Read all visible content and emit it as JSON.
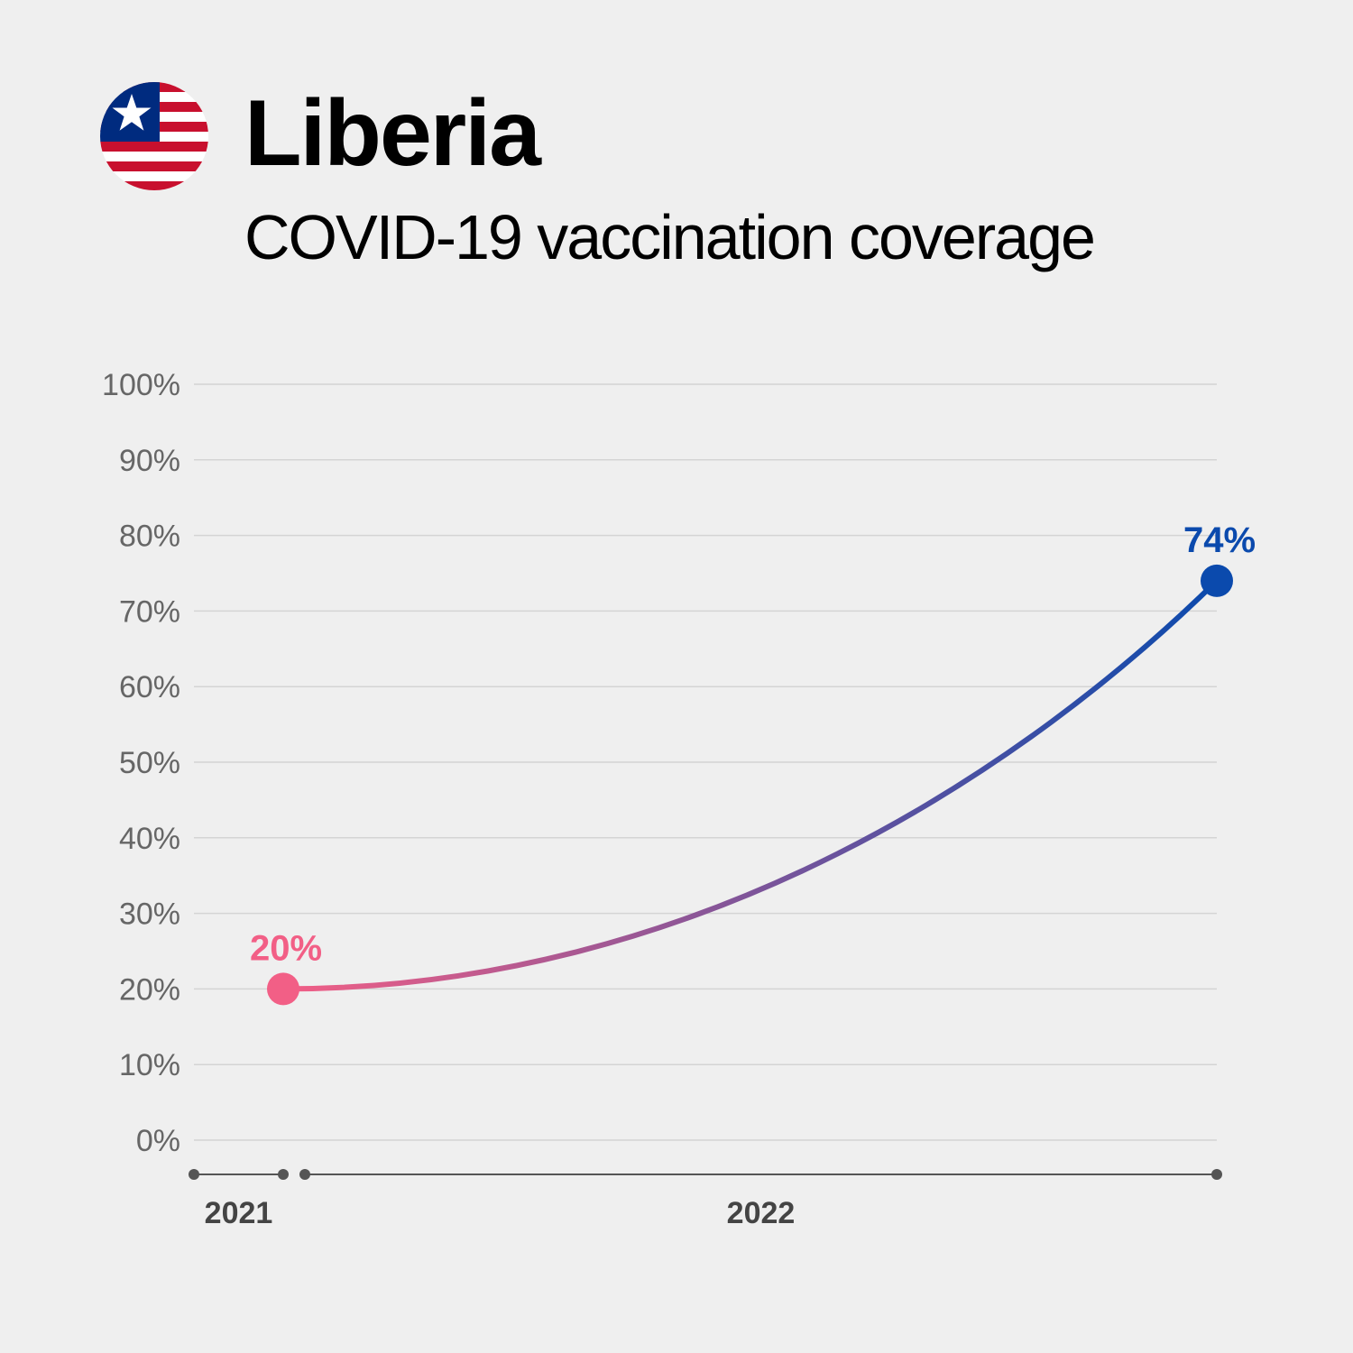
{
  "header": {
    "title": "Liberia",
    "subtitle": "COVID-19 vaccination coverage",
    "flag_icon": "liberia-flag-icon"
  },
  "colors": {
    "start": "#f25f86",
    "end": "#0b4aad",
    "grid": "#d4d4d4",
    "axis": "#555555",
    "flag_red": "#c8102e",
    "flag_blue": "#002b7f"
  },
  "chart_data": {
    "type": "line",
    "title": "COVID-19 vaccination coverage",
    "xlabel": "",
    "ylabel": "",
    "ylim": [
      0,
      100
    ],
    "y_ticks": [
      "0%",
      "10%",
      "20%",
      "30%",
      "40%",
      "50%",
      "60%",
      "70%",
      "80%",
      "90%",
      "100%"
    ],
    "x_labels": [
      "2021",
      "2022"
    ],
    "series": [
      {
        "points": [
          {
            "x": "2021-12-31",
            "y": 20,
            "label": "20%"
          },
          {
            "x": "2022-12-31",
            "y": 74,
            "label": "74%"
          }
        ]
      }
    ],
    "grid": true,
    "legend": "none"
  }
}
